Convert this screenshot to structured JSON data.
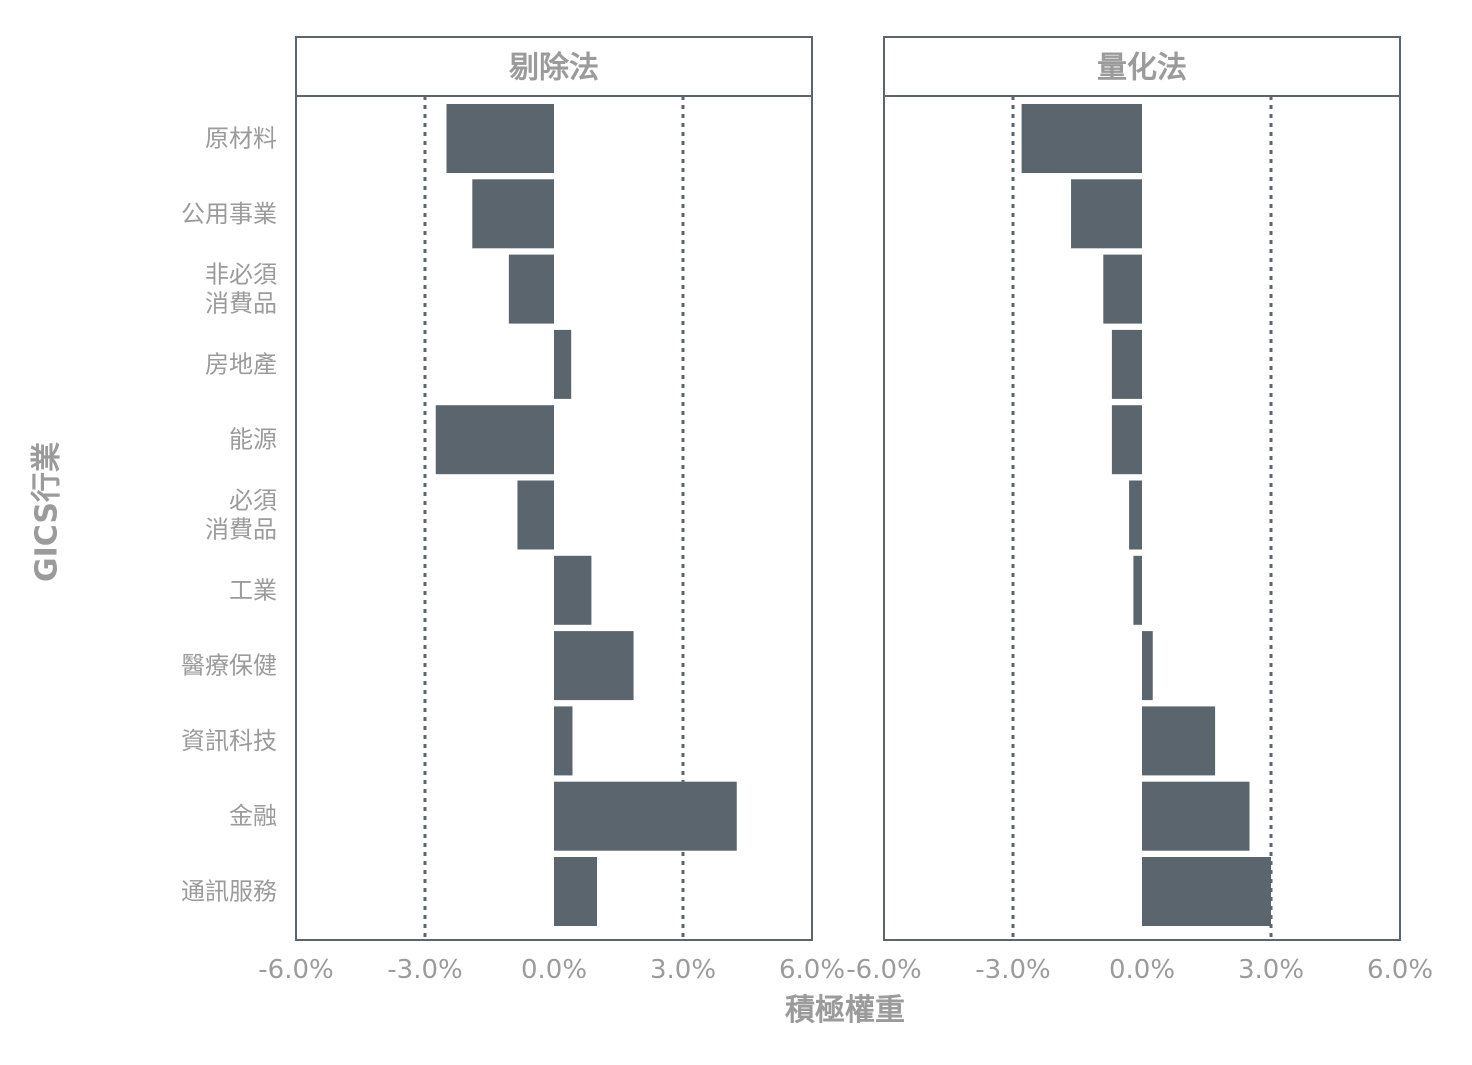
{
  "chart_data": {
    "type": "bar",
    "orientation": "horizontal",
    "xlabel": "積極權重",
    "ylabel": "GICS行業",
    "xlim": [
      -6.0,
      6.0
    ],
    "xticks": [
      -6.0,
      -3.0,
      0.0,
      3.0,
      6.0
    ],
    "tick_labels": [
      "-6.0%",
      "-3.0%",
      "0.0%",
      "3.0%",
      "6.0%"
    ],
    "reference_lines": [
      -3.0,
      3.0
    ],
    "categories": [
      [
        "原材料"
      ],
      [
        "公用事業"
      ],
      [
        "非必須",
        "消費品"
      ],
      [
        "房地產"
      ],
      [
        "能源"
      ],
      [
        "必須",
        "消費品"
      ],
      [
        "工業"
      ],
      [
        "醫療保健"
      ],
      [
        "資訊科技"
      ],
      [
        "金融"
      ],
      [
        "通訊服務"
      ]
    ],
    "panels": [
      {
        "title": "剔除法",
        "values": [
          -2.5,
          -1.9,
          -1.05,
          0.4,
          -2.75,
          -0.85,
          0.87,
          1.85,
          0.43,
          4.25,
          1.0
        ]
      },
      {
        "title": "量化法",
        "values": [
          -2.8,
          -1.65,
          -0.9,
          -0.7,
          -0.7,
          -0.3,
          -0.2,
          0.25,
          1.7,
          2.5,
          3.0
        ]
      }
    ],
    "grid": false,
    "legend": "none",
    "colors": {
      "bar": "#5a656e",
      "frame": "#5a656e",
      "reference_line": "#5a656e",
      "text": "#9b9b9b"
    }
  }
}
